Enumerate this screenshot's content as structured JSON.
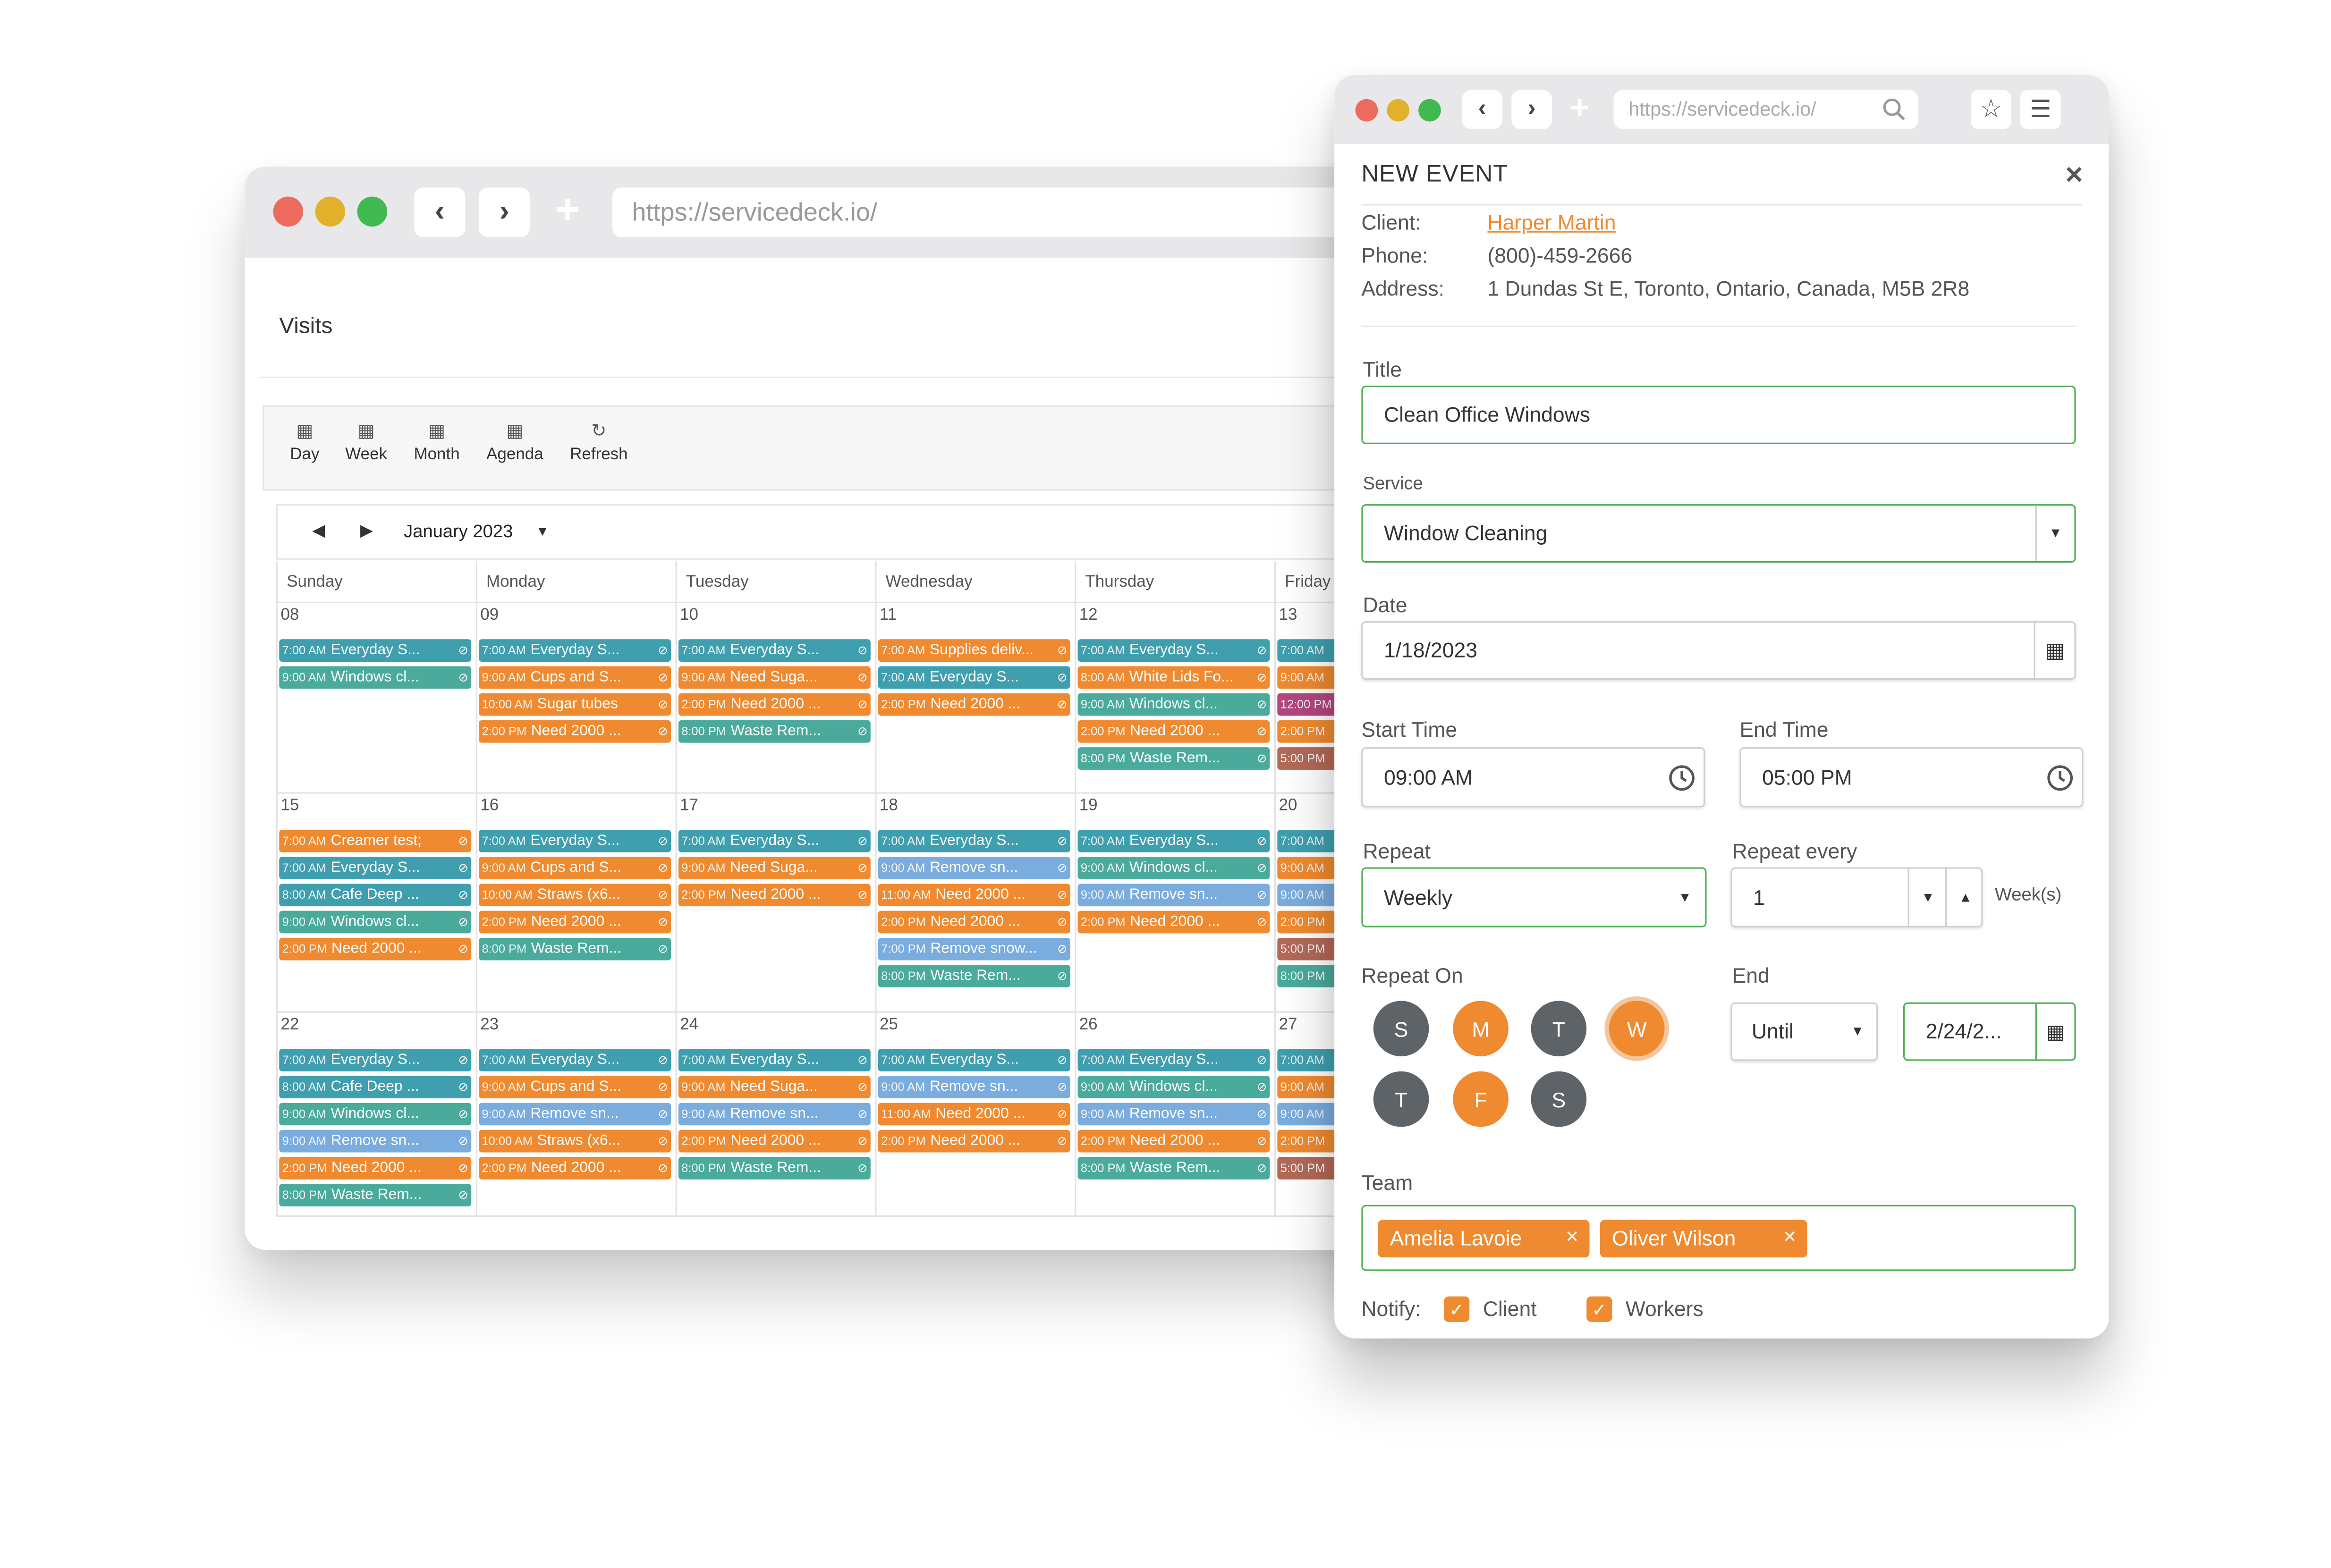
{
  "back_window": {
    "url": "https://servicedeck.io/",
    "page_title": "Visits",
    "toolbar": [
      {
        "label": "Day",
        "icon": "calendar-day-icon"
      },
      {
        "label": "Week",
        "icon": "calendar-week-icon"
      },
      {
        "label": "Month",
        "icon": "calendar-month-icon"
      },
      {
        "label": "Agenda",
        "icon": "calendar-agenda-icon"
      },
      {
        "label": "Refresh",
        "icon": "refresh-icon"
      }
    ],
    "month_label": "January 2023",
    "day_names": [
      "Sunday",
      "Monday",
      "Tuesday",
      "Wednesday",
      "Thursday",
      "Friday"
    ],
    "weeks": [
      {
        "days": [
          {
            "date": "08",
            "events": [
              [
                "7:00 AM",
                "Everyday S...",
                "teal"
              ],
              [
                "9:00 AM",
                "Windows cl...",
                "green"
              ]
            ]
          },
          {
            "date": "09",
            "events": [
              [
                "7:00 AM",
                "Everyday S...",
                "teal"
              ],
              [
                "9:00 AM",
                "Cups and S...",
                "orange"
              ],
              [
                "10:00 AM",
                "Sugar tubes",
                "orange"
              ],
              [
                "2:00 PM",
                "Need 2000 ...",
                "orange"
              ]
            ]
          },
          {
            "date": "10",
            "events": [
              [
                "7:00 AM",
                "Everyday S...",
                "teal"
              ],
              [
                "9:00 AM",
                "Need Suga...",
                "orange"
              ],
              [
                "2:00 PM",
                "Need 2000 ...",
                "orange"
              ],
              [
                "8:00 PM",
                "Waste Rem...",
                "green"
              ]
            ]
          },
          {
            "date": "11",
            "events": [
              [
                "7:00 AM",
                "Supplies deliv...",
                "orange"
              ],
              [
                "7:00 AM",
                "Everyday S...",
                "teal"
              ],
              [
                "2:00 PM",
                "Need 2000 ...",
                "orange"
              ]
            ]
          },
          {
            "date": "12",
            "events": [
              [
                "7:00 AM",
                "Everyday S...",
                "teal"
              ],
              [
                "8:00 AM",
                "White Lids Fo...",
                "orange"
              ],
              [
                "9:00 AM",
                "Windows cl...",
                "green"
              ],
              [
                "2:00 PM",
                "Need 2000 ...",
                "orange"
              ],
              [
                "8:00 PM",
                "Waste Rem...",
                "green"
              ]
            ]
          },
          {
            "date": "13",
            "events": [
              [
                "7:00 AM",
                "",
                "teal"
              ],
              [
                "9:00 AM",
                "",
                "orange"
              ],
              [
                "12:00 PM",
                "",
                "magenta"
              ],
              [
                "2:00 PM",
                "",
                "orange"
              ],
              [
                "5:00 PM",
                "",
                "brown"
              ]
            ]
          }
        ]
      },
      {
        "days": [
          {
            "date": "15",
            "events": [
              [
                "7:00 AM",
                "Creamer test;",
                "orange"
              ],
              [
                "7:00 AM",
                "Everyday S...",
                "teal"
              ],
              [
                "8:00 AM",
                "Cafe Deep ...",
                "teal"
              ],
              [
                "9:00 AM",
                "Windows cl...",
                "green"
              ],
              [
                "2:00 PM",
                "Need 2000 ...",
                "orange"
              ]
            ]
          },
          {
            "date": "16",
            "events": [
              [
                "7:00 AM",
                "Everyday S...",
                "teal"
              ],
              [
                "9:00 AM",
                "Cups and S...",
                "orange"
              ],
              [
                "10:00 AM",
                "Straws (x6...",
                "orange"
              ],
              [
                "2:00 PM",
                "Need 2000 ...",
                "orange"
              ],
              [
                "8:00 PM",
                "Waste Rem...",
                "green"
              ]
            ]
          },
          {
            "date": "17",
            "events": [
              [
                "7:00 AM",
                "Everyday S...",
                "teal"
              ],
              [
                "9:00 AM",
                "Need Suga...",
                "orange"
              ],
              [
                "2:00 PM",
                "Need 2000 ...",
                "orange"
              ]
            ]
          },
          {
            "date": "18",
            "events": [
              [
                "7:00 AM",
                "Everyday S...",
                "teal"
              ],
              [
                "9:00 AM",
                "Remove sn...",
                "blue"
              ],
              [
                "11:00 AM",
                "Need 2000 ...",
                "orange"
              ],
              [
                "2:00 PM",
                "Need 2000 ...",
                "orange"
              ],
              [
                "7:00 PM",
                "Remove snow...",
                "blue"
              ],
              [
                "8:00 PM",
                "Waste Rem...",
                "green"
              ]
            ]
          },
          {
            "date": "19",
            "events": [
              [
                "7:00 AM",
                "Everyday S...",
                "teal"
              ],
              [
                "9:00 AM",
                "Windows cl...",
                "green"
              ],
              [
                "9:00 AM",
                "Remove sn...",
                "blue"
              ],
              [
                "2:00 PM",
                "Need 2000 ...",
                "orange"
              ]
            ]
          },
          {
            "date": "20",
            "events": [
              [
                "7:00 AM",
                "",
                "teal"
              ],
              [
                "9:00 AM",
                "",
                "orange"
              ],
              [
                "9:00 AM",
                "",
                "blue"
              ],
              [
                "2:00 PM",
                "",
                "orange"
              ],
              [
                "5:00 PM",
                "",
                "brown"
              ],
              [
                "8:00 PM",
                "",
                "green"
              ]
            ]
          }
        ]
      },
      {
        "days": [
          {
            "date": "22",
            "events": [
              [
                "7:00 AM",
                "Everyday S...",
                "teal"
              ],
              [
                "8:00 AM",
                "Cafe Deep ...",
                "teal"
              ],
              [
                "9:00 AM",
                "Windows cl...",
                "green"
              ],
              [
                "9:00 AM",
                "Remove sn...",
                "blue"
              ],
              [
                "2:00 PM",
                "Need 2000 ...",
                "orange"
              ],
              [
                "8:00 PM",
                "Waste Rem...",
                "green"
              ]
            ]
          },
          {
            "date": "23",
            "events": [
              [
                "7:00 AM",
                "Everyday S...",
                "teal"
              ],
              [
                "9:00 AM",
                "Cups and S...",
                "orange"
              ],
              [
                "9:00 AM",
                "Remove sn...",
                "blue"
              ],
              [
                "10:00 AM",
                "Straws (x6...",
                "orange"
              ],
              [
                "2:00 PM",
                "Need 2000 ...",
                "orange"
              ]
            ]
          },
          {
            "date": "24",
            "events": [
              [
                "7:00 AM",
                "Everyday S...",
                "teal"
              ],
              [
                "9:00 AM",
                "Need Suga...",
                "orange"
              ],
              [
                "9:00 AM",
                "Remove sn...",
                "blue"
              ],
              [
                "2:00 PM",
                "Need 2000 ...",
                "orange"
              ],
              [
                "8:00 PM",
                "Waste Rem...",
                "green"
              ]
            ]
          },
          {
            "date": "25",
            "events": [
              [
                "7:00 AM",
                "Everyday S...",
                "teal"
              ],
              [
                "9:00 AM",
                "Remove sn...",
                "blue"
              ],
              [
                "11:00 AM",
                "Need 2000 ...",
                "orange"
              ],
              [
                "2:00 PM",
                "Need 2000 ...",
                "orange"
              ]
            ]
          },
          {
            "date": "26",
            "events": [
              [
                "7:00 AM",
                "Everyday S...",
                "teal"
              ],
              [
                "9:00 AM",
                "Windows cl...",
                "green"
              ],
              [
                "9:00 AM",
                "Remove sn...",
                "blue"
              ],
              [
                "2:00 PM",
                "Need 2000 ...",
                "orange"
              ],
              [
                "8:00 PM",
                "Waste Rem...",
                "green"
              ]
            ]
          },
          {
            "date": "27",
            "events": [
              [
                "7:00 AM",
                "",
                "teal"
              ],
              [
                "9:00 AM",
                "",
                "orange"
              ],
              [
                "9:00 AM",
                "",
                "blue"
              ],
              [
                "2:00 PM",
                "",
                "orange"
              ],
              [
                "5:00 PM",
                "",
                "brown"
              ]
            ]
          }
        ]
      }
    ]
  },
  "front_window": {
    "url": "https://servicedeck.io/",
    "modal_title": "NEW EVENT",
    "close_glyph": "×",
    "client_label": "Client:",
    "client_value": "Harper Martin",
    "phone_label": "Phone:",
    "phone_value": "(800)-459-2666",
    "address_label": "Address:",
    "address_value": "1 Dundas St E, Toronto, Ontario, Canada, M5B 2R8",
    "title_label": "Title",
    "title_value": "Clean Office Windows",
    "service_label": "Service",
    "service_value": "Window Cleaning",
    "date_label": "Date",
    "date_value": "1/18/2023",
    "start_time_label": "Start Time",
    "start_time_value": "09:00 AM",
    "end_time_label": "End Time",
    "end_time_value": "05:00 PM",
    "repeat_label": "Repeat",
    "repeat_value": "Weekly",
    "repeat_every_label": "Repeat every",
    "repeat_every_value": "1",
    "repeat_every_unit": "Week(s)",
    "repeat_on_label": "Repeat On",
    "weekdays": [
      {
        "letter": "S",
        "selected": false
      },
      {
        "letter": "M",
        "selected": true
      },
      {
        "letter": "T",
        "selected": false
      },
      {
        "letter": "W",
        "selected": true
      },
      {
        "letter": "T",
        "selected": false
      },
      {
        "letter": "F",
        "selected": true
      },
      {
        "letter": "S",
        "selected": false
      }
    ],
    "end_label": "End",
    "end_mode_value": "Until",
    "end_date_value": "2/24/2...",
    "team_label": "Team",
    "team_members": [
      "Amelia Lavoie",
      "Oliver Wilson"
    ],
    "notify_label": "Notify:",
    "notify_client_label": "Client",
    "notify_workers_label": "Workers"
  },
  "colors": {
    "accent_orange": "#ef8a30",
    "event_teal": "#3f9fae",
    "event_green": "#4aab9c",
    "event_blue": "#7aacde",
    "event_magenta": "#b3477f",
    "event_brown": "#b26958",
    "field_border_green": "#4caf50",
    "weekday_unselected": "#5e6368",
    "traffic_red": "#ec6a5e",
    "traffic_yellow": "#e1b12c",
    "traffic_green": "#3fb950"
  }
}
